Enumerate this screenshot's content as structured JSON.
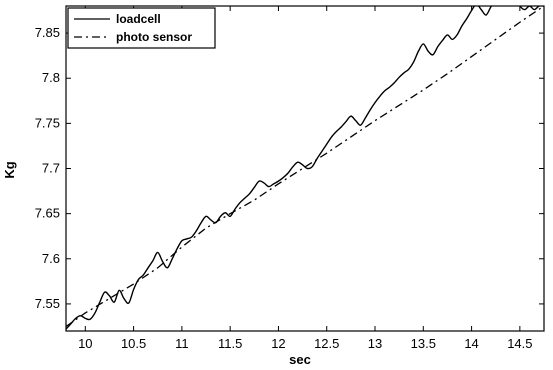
{
  "chart_data": {
    "type": "line",
    "title": "",
    "xlabel": "sec",
    "ylabel": "Kg",
    "xlim": [
      9.8,
      14.75
    ],
    "ylim": [
      7.52,
      7.88
    ],
    "xticks": [
      "10",
      "10.5",
      "11",
      "11.5",
      "12",
      "12.5",
      "13",
      "13.5",
      "14",
      "14.5"
    ],
    "yticks": [
      "7.55",
      "7.6",
      "7.65",
      "7.7",
      "7.75",
      "7.8",
      "7.85"
    ],
    "grid": false,
    "legend_position": "top-left",
    "series": [
      {
        "name": "loadcell",
        "style": "solid",
        "color": "#000000",
        "x": [
          9.8,
          9.85,
          9.9,
          9.95,
          10.0,
          10.05,
          10.1,
          10.15,
          10.2,
          10.25,
          10.3,
          10.35,
          10.4,
          10.45,
          10.5,
          10.55,
          10.6,
          10.65,
          10.7,
          10.75,
          10.8,
          10.85,
          10.9,
          10.95,
          11.0,
          11.05,
          11.1,
          11.15,
          11.2,
          11.25,
          11.3,
          11.35,
          11.4,
          11.45,
          11.5,
          11.55,
          11.6,
          11.65,
          11.7,
          11.75,
          11.8,
          11.85,
          11.9,
          11.95,
          12.0,
          12.05,
          12.1,
          12.15,
          12.2,
          12.25,
          12.3,
          12.35,
          12.4,
          12.45,
          12.5,
          12.55,
          12.6,
          12.65,
          12.7,
          12.75,
          12.8,
          12.85,
          12.9,
          12.95,
          13.0,
          13.05,
          13.1,
          13.15,
          13.2,
          13.25,
          13.3,
          13.35,
          13.4,
          13.45,
          13.5,
          13.55,
          13.6,
          13.65,
          13.7,
          13.75,
          13.8,
          13.85,
          13.9,
          13.95,
          14.0,
          14.05,
          14.1,
          14.15,
          14.2,
          14.25,
          14.3,
          14.35,
          14.4,
          14.45,
          14.5,
          14.55,
          14.6,
          14.65,
          14.7,
          14.75
        ],
        "y": [
          7.522,
          7.528,
          7.534,
          7.537,
          7.534,
          7.533,
          7.54,
          7.552,
          7.563,
          7.559,
          7.552,
          7.565,
          7.556,
          7.551,
          7.566,
          7.577,
          7.582,
          7.59,
          7.598,
          7.607,
          7.597,
          7.59,
          7.6,
          7.611,
          7.62,
          7.622,
          7.624,
          7.631,
          7.64,
          7.647,
          7.643,
          7.64,
          7.647,
          7.651,
          7.647,
          7.655,
          7.662,
          7.667,
          7.672,
          7.679,
          7.686,
          7.684,
          7.68,
          7.683,
          7.686,
          7.69,
          7.695,
          7.702,
          7.707,
          7.704,
          7.7,
          7.702,
          7.711,
          7.719,
          7.727,
          7.735,
          7.741,
          7.746,
          7.752,
          7.758,
          7.753,
          7.748,
          7.756,
          7.765,
          7.773,
          7.78,
          7.786,
          7.79,
          7.795,
          7.801,
          7.806,
          7.81,
          7.818,
          7.83,
          7.838,
          7.83,
          7.826,
          7.835,
          7.842,
          7.848,
          7.843,
          7.848,
          7.858,
          7.866,
          7.875,
          7.882,
          7.876,
          7.87,
          7.879,
          7.886,
          7.882,
          7.885,
          7.889,
          7.89,
          7.88,
          7.876,
          7.88,
          7.876,
          7.88,
          7.88
        ]
      },
      {
        "name": "photo sensor",
        "style": "dashdot",
        "color": "#000000",
        "x": [
          9.8,
          10.0,
          10.25,
          10.5,
          10.75,
          11.0,
          11.25,
          11.5,
          11.75,
          12.0,
          12.25,
          12.5,
          12.75,
          13.0,
          13.25,
          13.5,
          13.75,
          14.0,
          14.25,
          14.5,
          14.75
        ],
        "y": [
          7.525,
          7.54,
          7.556,
          7.572,
          7.59,
          7.613,
          7.634,
          7.65,
          7.665,
          7.683,
          7.7,
          7.717,
          7.735,
          7.753,
          7.77,
          7.787,
          7.805,
          7.824,
          7.843,
          7.862,
          7.88
        ]
      }
    ]
  }
}
